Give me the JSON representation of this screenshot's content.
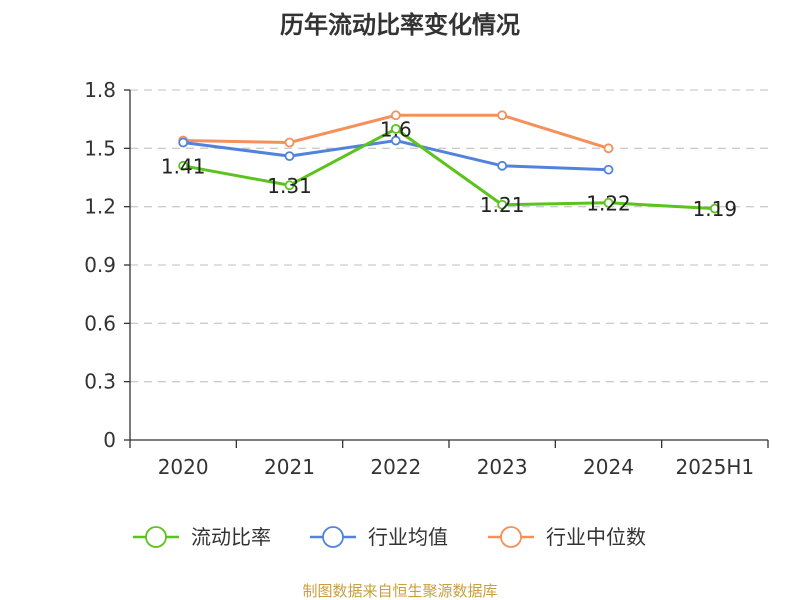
{
  "chart_data": {
    "type": "line",
    "title": "历年流动比率变化情况",
    "categories": [
      "2020",
      "2021",
      "2022",
      "2023",
      "2024",
      "2025H1"
    ],
    "ylim": [
      0,
      1.8
    ],
    "yticks": [
      "0",
      "0.3",
      "0.6",
      "0.9",
      "1.2",
      "1.5",
      "1.8"
    ],
    "grid": true,
    "legend_position": "bottom",
    "series": [
      {
        "name": "流动比率",
        "color": "#5cc31d",
        "values": [
          1.41,
          1.31,
          1.6,
          1.21,
          1.22,
          1.19
        ],
        "labels": [
          "1.41",
          "1.31",
          "1.6",
          "1.21",
          "1.22",
          "1.19"
        ]
      },
      {
        "name": "行业均值",
        "color": "#5283dc",
        "values": [
          1.53,
          1.46,
          1.54,
          1.41,
          1.39,
          null
        ]
      },
      {
        "name": "行业中位数",
        "color": "#f5905a",
        "values": [
          1.54,
          1.53,
          1.67,
          1.67,
          1.5,
          null
        ]
      }
    ]
  },
  "source_text": "制图数据来自恒生聚源数据库"
}
